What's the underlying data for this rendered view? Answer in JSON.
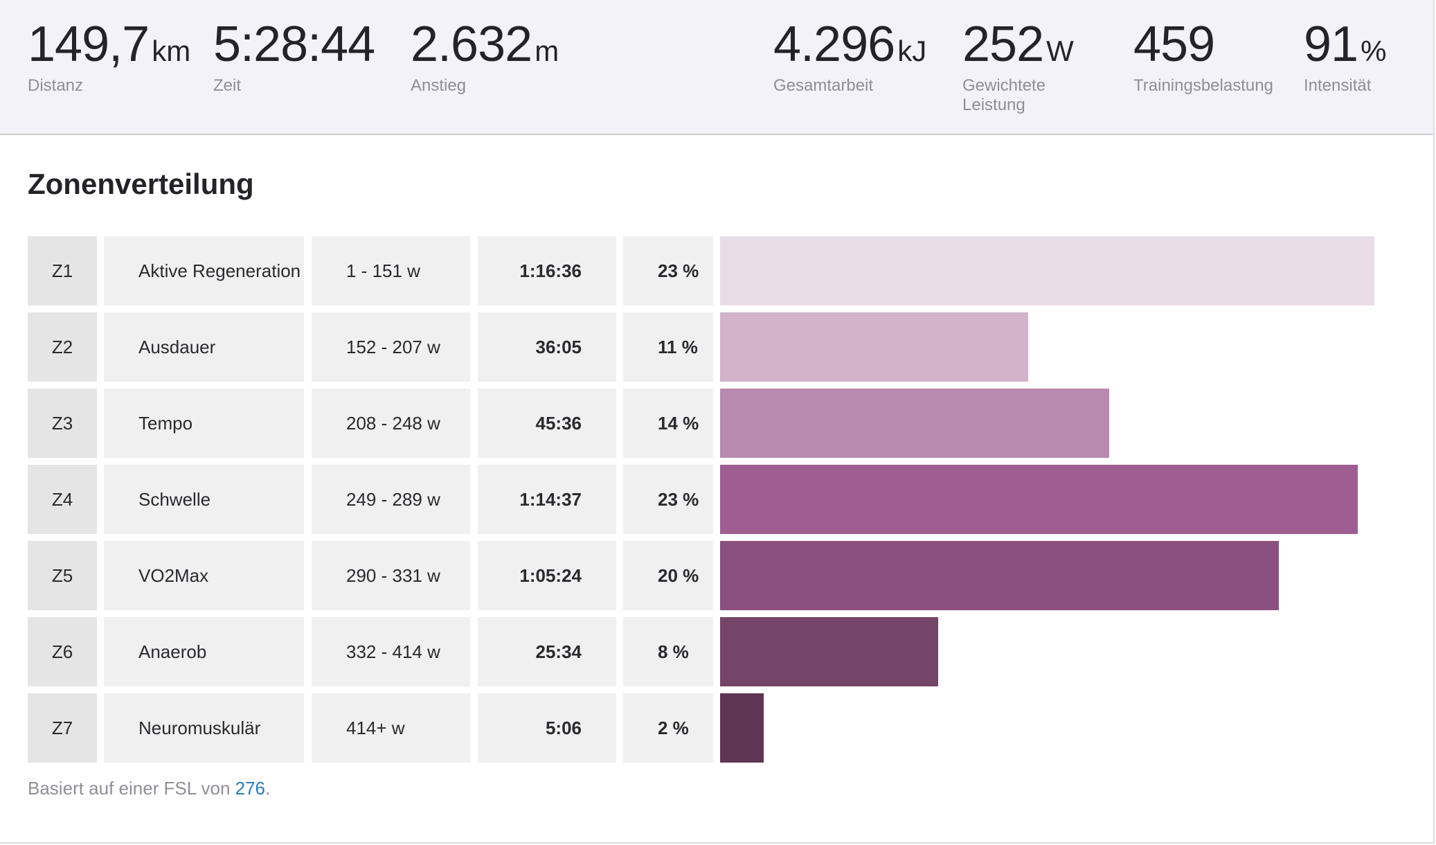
{
  "stats": {
    "distance": {
      "value": "149,7",
      "unit": "km",
      "label": "Distanz"
    },
    "time": {
      "value": "5:28:44",
      "unit": "",
      "label": "Zeit"
    },
    "elevation": {
      "value": "2.632",
      "unit": "m",
      "label": "Anstieg"
    },
    "work": {
      "value": "4.296",
      "unit": "kJ",
      "label": "Gesamtarbeit"
    },
    "weighted_power": {
      "value": "252",
      "unit": "W",
      "label": "Gewichtete Leistung"
    },
    "training_load": {
      "value": "459",
      "unit": "",
      "label": "Trainingsbelastung"
    },
    "intensity": {
      "value": "91",
      "unit": "%",
      "label": "Intensität"
    }
  },
  "zones_title": "Zonenverteilung",
  "zones": [
    {
      "zone": "Z1",
      "name": "Aktive Regeneration",
      "range": "1 - 151 w",
      "time": "1:16:36",
      "percent": "23 %",
      "bar_fraction": 0.9722,
      "color": "#e9dde7"
    },
    {
      "zone": "Z2",
      "name": "Ausdauer",
      "range": "152 - 207 w",
      "time": "36:05",
      "percent": "11 %",
      "bar_fraction": 0.4577,
      "color": "#d2b3ca"
    },
    {
      "zone": "Z3",
      "name": "Tempo",
      "range": "208 - 248 w",
      "time": "45:36",
      "percent": "14 %",
      "bar_fraction": 0.5786,
      "color": "#b88aaf"
    },
    {
      "zone": "Z4",
      "name": "Schwelle",
      "range": "249 - 289 w",
      "time": "1:14:37",
      "percent": "23 %",
      "bar_fraction": 0.9478,
      "color": "#9e5e91"
    },
    {
      "zone": "Z5",
      "name": "VO2Max",
      "range": "290 - 331 w",
      "time": "1:05:24",
      "percent": "20 %",
      "bar_fraction": 0.8302,
      "color": "#8a5080"
    },
    {
      "zone": "Z6",
      "name": "Anaerob",
      "range": "332 - 414 w",
      "time": "25:34",
      "percent": "8 %",
      "bar_fraction": 0.3244,
      "color": "#744568"
    },
    {
      "zone": "Z7",
      "name": "Neuromuskulär",
      "range": "414+ w",
      "time": "5:06",
      "percent": "2 %",
      "bar_fraction": 0.0648,
      "color": "#5e3654"
    }
  ],
  "footnote": {
    "prefix": "Basiert auf einer FSL von ",
    "link": "276",
    "suffix": "."
  }
}
